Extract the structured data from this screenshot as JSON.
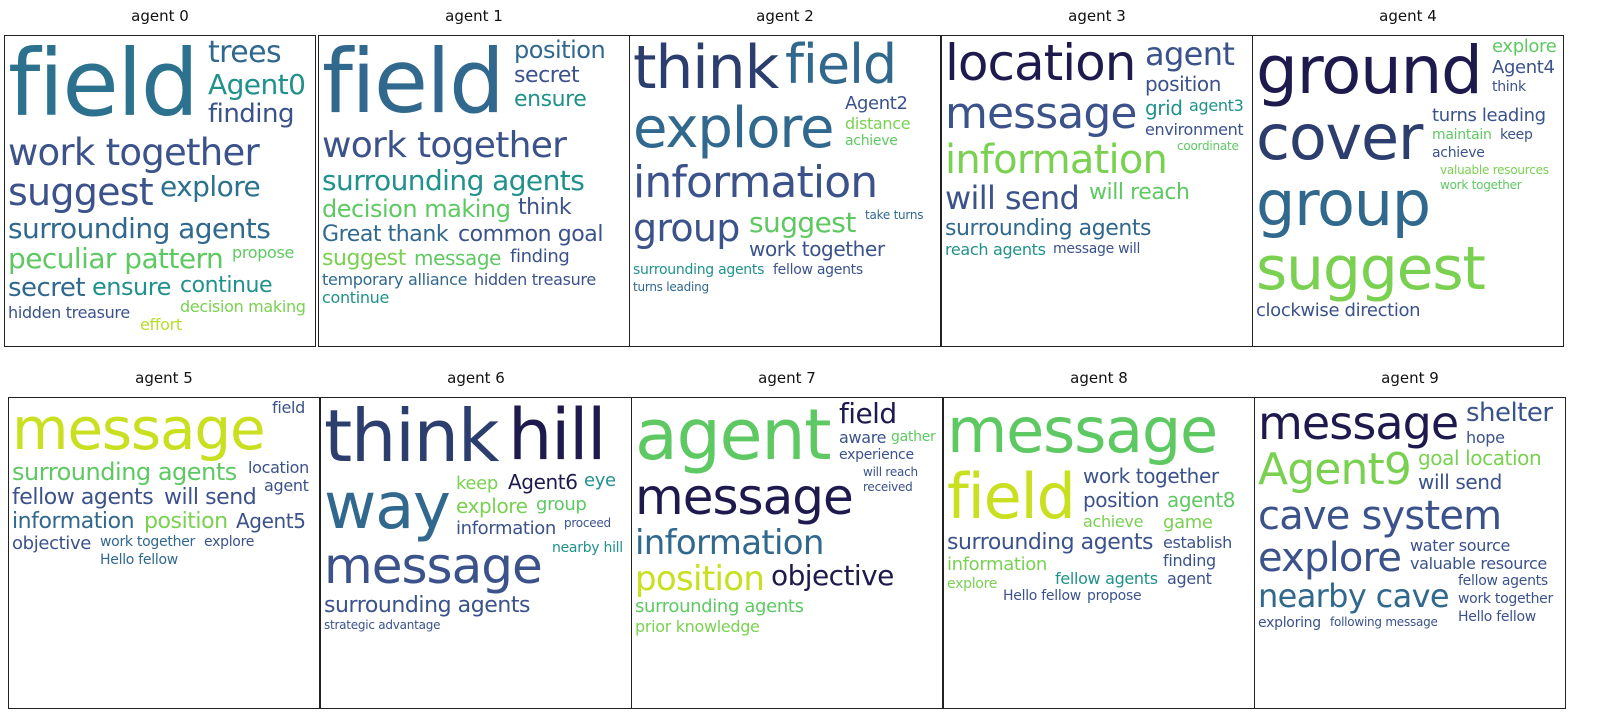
{
  "colors": {
    "palette": [
      "#440154",
      "#3b528b",
      "#21918c",
      "#5ec962",
      "#fde725",
      "#2c728e",
      "#7ad151",
      "#b5de2b"
    ]
  },
  "panels": [
    {
      "title": "agent 0",
      "words": [
        {
          "text": "field",
          "size": 92,
          "color": "#2c728e"
        },
        {
          "text": "work together",
          "size": 44,
          "color": "#3b528b"
        },
        {
          "text": "surrounding agents",
          "size": 28,
          "color": "#31688e"
        },
        {
          "text": "peculiar pattern",
          "size": 28,
          "color": "#5ec962"
        },
        {
          "text": "suggest",
          "size": 38,
          "color": "#3b528b"
        },
        {
          "text": "Agent0",
          "size": 28,
          "color": "#21918c"
        },
        {
          "text": "trees",
          "size": 30,
          "color": "#31688e"
        },
        {
          "text": "ensure",
          "size": 24,
          "color": "#21918c"
        },
        {
          "text": "explore",
          "size": 28,
          "color": "#2c728e"
        },
        {
          "text": "finding",
          "size": 26,
          "color": "#3b528b"
        },
        {
          "text": "secret",
          "size": 26,
          "color": "#31688e"
        },
        {
          "text": "continue",
          "size": 22,
          "color": "#21918c"
        },
        {
          "text": "decision making",
          "size": 16,
          "color": "#7ad151"
        },
        {
          "text": "hidden treasure",
          "size": 16,
          "color": "#3b528b"
        },
        {
          "text": "propose",
          "size": 16,
          "color": "#5ec962"
        },
        {
          "text": "effort",
          "size": 16,
          "color": "#b5de2b"
        }
      ]
    },
    {
      "title": "agent 1",
      "words": [
        {
          "text": "field",
          "size": 88,
          "color": "#31688e"
        },
        {
          "text": "work together",
          "size": 36,
          "color": "#3b528b"
        },
        {
          "text": "surrounding agents",
          "size": 28,
          "color": "#21918c"
        },
        {
          "text": "decision making",
          "size": 24,
          "color": "#5ec962"
        },
        {
          "text": "position",
          "size": 24,
          "color": "#31688e"
        },
        {
          "text": "secret",
          "size": 22,
          "color": "#3b528b"
        },
        {
          "text": "ensure",
          "size": 22,
          "color": "#21918c"
        },
        {
          "text": "message",
          "size": 20,
          "color": "#5ec962"
        },
        {
          "text": "think",
          "size": 22,
          "color": "#3b528b"
        },
        {
          "text": "Great thank",
          "size": 22,
          "color": "#31688e"
        },
        {
          "text": "common goal",
          "size": 22,
          "color": "#3b528b"
        },
        {
          "text": "suggest",
          "size": 22,
          "color": "#7ad151"
        },
        {
          "text": "temporary alliance",
          "size": 16,
          "color": "#31688e"
        },
        {
          "text": "hidden treasure",
          "size": 16,
          "color": "#3b528b"
        },
        {
          "text": "finding",
          "size": 18,
          "color": "#3b528b"
        },
        {
          "text": "continue",
          "size": 16,
          "color": "#21918c"
        }
      ]
    },
    {
      "title": "agent 2",
      "words": [
        {
          "text": "think",
          "size": 60,
          "color": "#2c3e6e"
        },
        {
          "text": "field",
          "size": 54,
          "color": "#31688e"
        },
        {
          "text": "explore",
          "size": 56,
          "color": "#31688e"
        },
        {
          "text": "information",
          "size": 44,
          "color": "#3b528b"
        },
        {
          "text": "group",
          "size": 38,
          "color": "#3b528b"
        },
        {
          "text": "suggest",
          "size": 28,
          "color": "#5ec962"
        },
        {
          "text": "work together",
          "size": 20,
          "color": "#3b528b"
        },
        {
          "text": "Agent2",
          "size": 18,
          "color": "#3b528b"
        },
        {
          "text": "distance",
          "size": 16,
          "color": "#7ad151"
        },
        {
          "text": "achieve",
          "size": 14,
          "color": "#5ec962"
        },
        {
          "text": "surrounding agents",
          "size": 14,
          "color": "#21918c"
        },
        {
          "text": "fellow agents",
          "size": 14,
          "color": "#3b528b"
        },
        {
          "text": "turns leading",
          "size": 12,
          "color": "#31688e"
        },
        {
          "text": "take turns",
          "size": 12,
          "color": "#31688e"
        }
      ]
    },
    {
      "title": "agent 3",
      "words": [
        {
          "text": "message",
          "size": 44,
          "color": "#3b528b"
        },
        {
          "text": "information",
          "size": 40,
          "color": "#7ad151"
        },
        {
          "text": "will send",
          "size": 32,
          "color": "#3b528b"
        },
        {
          "text": "location",
          "size": 50,
          "color": "#1f1a4e"
        },
        {
          "text": "surrounding agents",
          "size": 22,
          "color": "#31688e"
        },
        {
          "text": "agent",
          "size": 32,
          "color": "#3b528b"
        },
        {
          "text": "will reach",
          "size": 22,
          "color": "#5ec962"
        },
        {
          "text": "position",
          "size": 20,
          "color": "#3b528b"
        },
        {
          "text": "grid",
          "size": 20,
          "color": "#21918c"
        },
        {
          "text": "environment",
          "size": 16,
          "color": "#3b528b"
        },
        {
          "text": "reach agents",
          "size": 16,
          "color": "#21918c"
        },
        {
          "text": "agent3",
          "size": 16,
          "color": "#21918c"
        },
        {
          "text": "message will",
          "size": 14,
          "color": "#3b528b"
        },
        {
          "text": "coordinate",
          "size": 12,
          "color": "#5ec962"
        }
      ]
    },
    {
      "title": "agent 4",
      "words": [
        {
          "text": "suggest",
          "size": 60,
          "color": "#7ad151"
        },
        {
          "text": "cover",
          "size": 62,
          "color": "#2c3e6e"
        },
        {
          "text": "ground",
          "size": 66,
          "color": "#1f1a4e"
        },
        {
          "text": "group",
          "size": 62,
          "color": "#31688e"
        },
        {
          "text": "clockwise direction",
          "size": 18,
          "color": "#3b528b"
        },
        {
          "text": "turns leading",
          "size": 18,
          "color": "#3b528b"
        },
        {
          "text": "explore",
          "size": 18,
          "color": "#5ec962"
        },
        {
          "text": "Agent4",
          "size": 18,
          "color": "#3b528b"
        },
        {
          "text": "think",
          "size": 14,
          "color": "#3b528b"
        },
        {
          "text": "maintain",
          "size": 14,
          "color": "#5ec962"
        },
        {
          "text": "keep",
          "size": 14,
          "color": "#3b528b"
        },
        {
          "text": "achieve",
          "size": 14,
          "color": "#3b528b"
        },
        {
          "text": "valuable resources",
          "size": 12,
          "color": "#7ad151"
        },
        {
          "text": "work together",
          "size": 12,
          "color": "#5ec962"
        }
      ]
    },
    {
      "title": "agent 5",
      "words": [
        {
          "text": "message",
          "size": 58,
          "color": "#c8e020"
        },
        {
          "text": "surrounding agents",
          "size": 24,
          "color": "#5ec962"
        },
        {
          "text": "fellow agents",
          "size": 22,
          "color": "#3b528b"
        },
        {
          "text": "will send",
          "size": 22,
          "color": "#3b528b"
        },
        {
          "text": "information",
          "size": 22,
          "color": "#31688e"
        },
        {
          "text": "position",
          "size": 22,
          "color": "#7ad151"
        },
        {
          "text": "Agent5",
          "size": 20,
          "color": "#3b528b"
        },
        {
          "text": "objective",
          "size": 18,
          "color": "#3b528b"
        },
        {
          "text": "work together",
          "size": 14,
          "color": "#31688e"
        },
        {
          "text": "location",
          "size": 16,
          "color": "#3b528b"
        },
        {
          "text": "field",
          "size": 16,
          "color": "#3b528b"
        },
        {
          "text": "explore",
          "size": 14,
          "color": "#3b528b"
        },
        {
          "text": "agent",
          "size": 16,
          "color": "#3b528b"
        },
        {
          "text": "Hello fellow",
          "size": 14,
          "color": "#31688e"
        }
      ]
    },
    {
      "title": "agent 6",
      "words": [
        {
          "text": "think",
          "size": 72,
          "color": "#2c3e6e"
        },
        {
          "text": "hill",
          "size": 70,
          "color": "#1f1a4e"
        },
        {
          "text": "message",
          "size": 50,
          "color": "#3b528b"
        },
        {
          "text": "way",
          "size": 64,
          "color": "#31688e"
        },
        {
          "text": "surrounding agents",
          "size": 22,
          "color": "#3b528b"
        },
        {
          "text": "information",
          "size": 18,
          "color": "#3b528b"
        },
        {
          "text": "group",
          "size": 18,
          "color": "#5ec962"
        },
        {
          "text": "keep",
          "size": 18,
          "color": "#7ad151"
        },
        {
          "text": "Agent6",
          "size": 20,
          "color": "#1f1a4e"
        },
        {
          "text": "eye",
          "size": 18,
          "color": "#21918c"
        },
        {
          "text": "explore",
          "size": 20,
          "color": "#7ad151"
        },
        {
          "text": "nearby hill",
          "size": 14,
          "color": "#21918c"
        },
        {
          "text": "strategic advantage",
          "size": 12,
          "color": "#3b528b"
        },
        {
          "text": "proceed",
          "size": 12,
          "color": "#3b528b"
        }
      ]
    },
    {
      "title": "agent 7",
      "words": [
        {
          "text": "agent",
          "size": 70,
          "color": "#5ec962"
        },
        {
          "text": "message",
          "size": 50,
          "color": "#1f1a4e"
        },
        {
          "text": "information",
          "size": 34,
          "color": "#31688e"
        },
        {
          "text": "position",
          "size": 34,
          "color": "#c8e020"
        },
        {
          "text": "objective",
          "size": 28,
          "color": "#1f1a4e"
        },
        {
          "text": "field",
          "size": 28,
          "color": "#1f1a4e"
        },
        {
          "text": "surrounding agents",
          "size": 18,
          "color": "#5ec962"
        },
        {
          "text": "prior knowledge",
          "size": 16,
          "color": "#7ad151"
        },
        {
          "text": "aware",
          "size": 16,
          "color": "#3b528b"
        },
        {
          "text": "experience",
          "size": 14,
          "color": "#3b528b"
        },
        {
          "text": "gather",
          "size": 14,
          "color": "#5ec962"
        },
        {
          "text": "will reach",
          "size": 12,
          "color": "#3b528b"
        },
        {
          "text": "received",
          "size": 12,
          "color": "#3b528b"
        }
      ]
    },
    {
      "title": "agent 8",
      "words": [
        {
          "text": "message",
          "size": 62,
          "color": "#5ec962"
        },
        {
          "text": "field",
          "size": 62,
          "color": "#c8e020"
        },
        {
          "text": "surrounding agents",
          "size": 22,
          "color": "#3b528b"
        },
        {
          "text": "work together",
          "size": 20,
          "color": "#3b528b"
        },
        {
          "text": "position",
          "size": 20,
          "color": "#3b528b"
        },
        {
          "text": "agent8",
          "size": 20,
          "color": "#5ec962"
        },
        {
          "text": "game",
          "size": 18,
          "color": "#7ad151"
        },
        {
          "text": "achieve",
          "size": 16,
          "color": "#7ad151"
        },
        {
          "text": "establish",
          "size": 16,
          "color": "#3b528b"
        },
        {
          "text": "explore",
          "size": 14,
          "color": "#7ad151"
        },
        {
          "text": "finding",
          "size": 16,
          "color": "#3b528b"
        },
        {
          "text": "information",
          "size": 18,
          "color": "#7ad151"
        },
        {
          "text": "fellow agents",
          "size": 16,
          "color": "#21918c"
        },
        {
          "text": "Hello fellow",
          "size": 14,
          "color": "#3b528b"
        },
        {
          "text": "agent",
          "size": 16,
          "color": "#3b528b"
        },
        {
          "text": "propose",
          "size": 14,
          "color": "#3b528b"
        }
      ]
    },
    {
      "title": "agent 9",
      "words": [
        {
          "text": "cave system",
          "size": 40,
          "color": "#3b528b"
        },
        {
          "text": "Agent9",
          "size": 44,
          "color": "#7ad151"
        },
        {
          "text": "explore",
          "size": 40,
          "color": "#3b528b"
        },
        {
          "text": "message",
          "size": 46,
          "color": "#1f1a4e"
        },
        {
          "text": "nearby cave",
          "size": 32,
          "color": "#31688e"
        },
        {
          "text": "shelter",
          "size": 26,
          "color": "#3b528b"
        },
        {
          "text": "goal location",
          "size": 20,
          "color": "#7ad151"
        },
        {
          "text": "will send",
          "size": 20,
          "color": "#3b528b"
        },
        {
          "text": "fellow agents",
          "size": 14,
          "color": "#3b528b"
        },
        {
          "text": "water source",
          "size": 16,
          "color": "#3b528b"
        },
        {
          "text": "valuable resource",
          "size": 16,
          "color": "#3b528b"
        },
        {
          "text": "work together",
          "size": 14,
          "color": "#3b528b"
        },
        {
          "text": "hope",
          "size": 16,
          "color": "#3b528b"
        },
        {
          "text": "Hello fellow",
          "size": 14,
          "color": "#3b528b"
        },
        {
          "text": "exploring",
          "size": 14,
          "color": "#3b528b"
        },
        {
          "text": "following message",
          "size": 12,
          "color": "#3b528b"
        }
      ]
    }
  ]
}
